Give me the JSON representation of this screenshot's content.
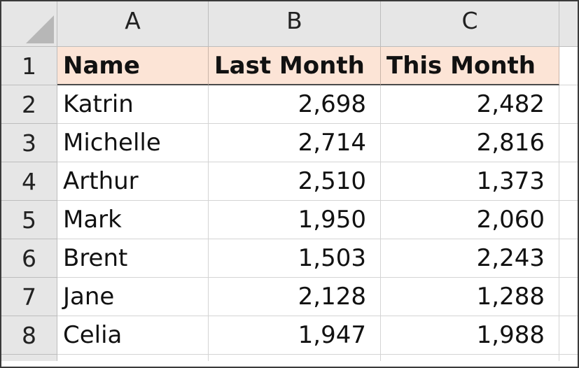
{
  "sheet": {
    "column_headers": [
      "A",
      "B",
      "C"
    ],
    "row_numbers": [
      "1",
      "2",
      "3",
      "4",
      "5",
      "6",
      "7",
      "8"
    ],
    "header_row": {
      "name": "Name",
      "last_month": "Last Month",
      "this_month": "This Month"
    },
    "rows": [
      {
        "name": "Katrin",
        "last_month": "2,698",
        "this_month": "2,482"
      },
      {
        "name": "Michelle",
        "last_month": "2,714",
        "this_month": "2,816"
      },
      {
        "name": "Arthur",
        "last_month": "2,510",
        "this_month": "1,373"
      },
      {
        "name": "Mark",
        "last_month": "1,950",
        "this_month": "2,060"
      },
      {
        "name": "Brent",
        "last_month": "1,503",
        "this_month": "2,243"
      },
      {
        "name": "Jane",
        "last_month": "2,128",
        "this_month": "1,288"
      },
      {
        "name": "Celia",
        "last_month": "1,947",
        "this_month": "1,988"
      }
    ]
  },
  "colors": {
    "header_fill": "#fce4d6",
    "heading_gray": "#e6e6e6",
    "gridline": "#d4d4d4"
  }
}
